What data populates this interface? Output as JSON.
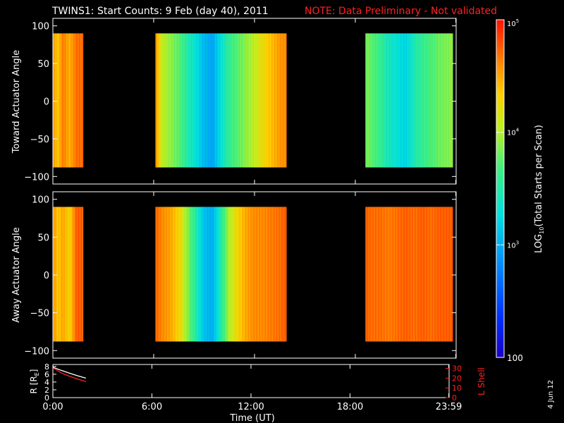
{
  "title": {
    "main": "TWINS1: Start Counts:  9 Feb (day  40), 2011",
    "note": "NOTE: Data Preliminary - Not validated",
    "note_color": "#ff2020"
  },
  "footer_date": "4 Jun 12",
  "chart_data": [
    {
      "type": "heatmap",
      "ylabel": "Toward Actuator Angle",
      "ylim": [
        -110,
        110
      ],
      "yticks": [
        "100",
        "50",
        "0",
        "−50",
        "−100"
      ],
      "ytick_values": [
        100,
        50,
        0,
        -50,
        -100
      ],
      "xlim": [
        0,
        24
      ],
      "xticks": [
        "0:00",
        "6:00",
        "12:00",
        "18:00",
        "23:59"
      ],
      "xtick_values": [
        0,
        6,
        12,
        18,
        23.98
      ],
      "data_blocks": [
        [
          0,
          1.8
        ],
        [
          6.1,
          13.9
        ],
        [
          18.6,
          23.8
        ]
      ],
      "angle_range": [
        -88,
        90
      ],
      "profile_hours": [
        0,
        0.3,
        0.6,
        1.0,
        1.4,
        1.8,
        6.1,
        6.5,
        7.0,
        7.5,
        8.0,
        8.5,
        9.0,
        9.5,
        10.0,
        10.5,
        11.0,
        11.5,
        12.0,
        12.5,
        13.0,
        13.5,
        13.9,
        18.6,
        19.0,
        19.5,
        20.0,
        20.5,
        21.0,
        21.5,
        22.0,
        22.5,
        23.0,
        23.4,
        23.8
      ],
      "profile_log_counts": [
        4.55,
        4.35,
        4.65,
        4.45,
        4.7,
        4.7,
        4.6,
        4.05,
        3.9,
        3.75,
        3.5,
        3.3,
        3.05,
        2.95,
        3.3,
        3.6,
        3.75,
        3.9,
        4.05,
        4.25,
        4.4,
        4.55,
        4.6,
        3.85,
        3.75,
        3.6,
        3.4,
        3.3,
        3.2,
        3.45,
        3.6,
        3.7,
        3.8,
        3.85,
        3.9
      ]
    },
    {
      "type": "heatmap",
      "ylabel": "Away Actuator Angle",
      "ylim": [
        -110,
        110
      ],
      "yticks": [
        "100",
        "50",
        "0",
        "−50",
        "−100"
      ],
      "ytick_values": [
        100,
        50,
        0,
        -50,
        -100
      ],
      "xlim": [
        0,
        24
      ],
      "xticks": [
        "0:00",
        "6:00",
        "12:00",
        "18:00",
        "23:59"
      ],
      "xtick_values": [
        0,
        6,
        12,
        18,
        23.98
      ],
      "data_blocks": [
        [
          0,
          1.8
        ],
        [
          6.1,
          13.9
        ],
        [
          18.6,
          23.8
        ]
      ],
      "angle_range": [
        -88,
        90
      ],
      "profile_hours": [
        0,
        0.3,
        0.6,
        1.0,
        1.4,
        1.8,
        6.1,
        6.5,
        7.0,
        7.5,
        8.0,
        8.5,
        9.0,
        9.5,
        10.0,
        10.5,
        11.0,
        11.5,
        12.0,
        12.5,
        13.0,
        13.5,
        13.9,
        18.6,
        19.0,
        19.5,
        20.0,
        20.5,
        21.0,
        21.5,
        22.0,
        22.5,
        23.0,
        23.4,
        23.8
      ],
      "profile_log_counts": [
        4.6,
        4.35,
        4.5,
        4.3,
        4.75,
        4.75,
        4.75,
        4.6,
        4.5,
        4.3,
        3.9,
        3.5,
        3.1,
        3.0,
        3.5,
        4.0,
        4.3,
        4.5,
        4.6,
        4.6,
        4.65,
        4.7,
        4.75,
        4.75,
        4.7,
        4.7,
        4.65,
        4.7,
        4.75,
        4.7,
        4.75,
        4.7,
        4.75,
        4.75,
        4.75
      ]
    },
    {
      "type": "line",
      "ylabel": "R [R_E]",
      "ylim": [
        0,
        8.5
      ],
      "yticks": [
        "8",
        "6",
        "4",
        "2",
        "0"
      ],
      "ytick_values": [
        8,
        6,
        4,
        2,
        0
      ],
      "y2label": "L Shell",
      "y2lim": [
        0,
        34
      ],
      "y2ticks": [
        "30",
        "20",
        "10",
        "0"
      ],
      "y2tick_values": [
        30,
        20,
        10,
        0
      ],
      "xlabel": "Time (UT)",
      "xlim": [
        0,
        24
      ],
      "xticks": [
        "0:00",
        "6:00",
        "12:00",
        "18:00",
        "23:59"
      ],
      "xtick_values": [
        0,
        6,
        12,
        18,
        23.98
      ],
      "series": [
        {
          "color": "#ffffff",
          "axis": "left",
          "x": [
            0,
            0.5,
            1.0,
            1.5,
            2.0
          ],
          "y": [
            7.8,
            7.0,
            6.3,
            5.6,
            5.0
          ]
        },
        {
          "color": "#ff2020",
          "axis": "right",
          "x": [
            0,
            0.5,
            1.0,
            1.5,
            2.0
          ],
          "y": [
            30.5,
            25.5,
            22.0,
            19.0,
            16.5
          ]
        }
      ]
    }
  ],
  "colorbar": {
    "scale": "log",
    "range": [
      100,
      100000
    ],
    "label": "LOG",
    "label_sub": "10",
    "label_rest": "(Total Starts per Scan)",
    "ticks": [
      {
        "value": 100,
        "label": "100",
        "kind": "plain"
      },
      {
        "value": 1000,
        "base": "10",
        "exp": "3",
        "kind": "pow"
      },
      {
        "value": 10000,
        "base": "10",
        "exp": "4",
        "kind": "pow"
      },
      {
        "value": 100000,
        "base": "10",
        "exp": "5",
        "kind": "pow"
      }
    ]
  }
}
